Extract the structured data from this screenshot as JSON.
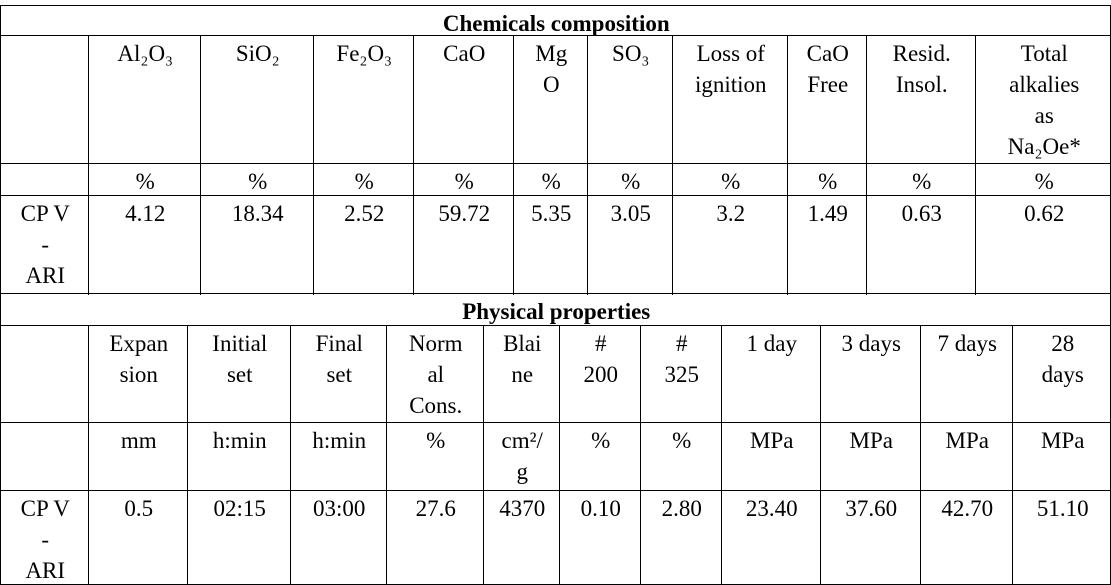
{
  "chemical": {
    "title": "Chemicals composition",
    "headers": [
      "Al₂O₃",
      "SiO₂",
      "Fe₂O₃",
      "CaO",
      "Mg\nO",
      "SO₃",
      "Loss of\nignition",
      "CaO\nFree",
      "Resid.\nInsol.",
      "Total\nalkalies\nas\nNa₂Oe*"
    ],
    "units": [
      "%",
      "%",
      "%",
      "%",
      "%",
      "%",
      "%",
      "%",
      "%",
      "%"
    ],
    "row_label": "CP V\n-\nARI",
    "values": [
      "4.12",
      "18.34",
      "2.52",
      "59.72",
      "5.35",
      "3.05",
      "3.2",
      "1.49",
      "0.63",
      "0.62"
    ]
  },
  "physical": {
    "title": "Physical properties",
    "headers": [
      "Expan\nsion",
      "Initial\nset",
      "Final\nset",
      "Norm\nal\nCons.",
      "Blai\nne",
      "#\n200",
      "#\n325",
      "1 day",
      "3 days",
      "7 days",
      "28\ndays"
    ],
    "units": [
      "mm",
      "h:min",
      "h:min",
      "%",
      "cm²/\ng",
      "%",
      "%",
      "MPa",
      "MPa",
      "MPa",
      "MPa"
    ],
    "row_label": "CP V\n-\nARI",
    "values": [
      "0.5",
      "02:15",
      "03:00",
      "27.6",
      "4370",
      "0.10",
      "2.80",
      "23.40",
      "37.60",
      "42.70",
      "51.10"
    ]
  }
}
